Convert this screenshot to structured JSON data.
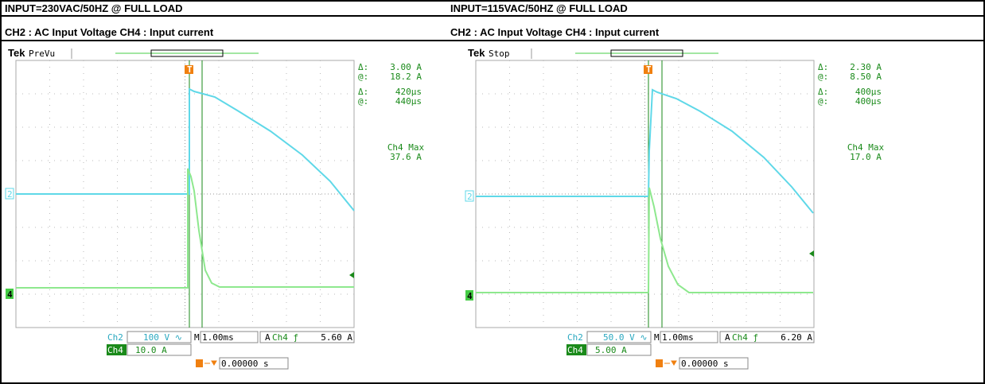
{
  "headers": [
    "INPUT=230VAC/50HZ @ FULL LOAD",
    "INPUT=115VAC/50HZ @ FULL LOAD"
  ],
  "subheaders": [
    "CH2 : AC Input Voltage  CH4 : Input current",
    "CH2 : AC Input Voltage  CH4 : Input current"
  ],
  "scopes": [
    {
      "brand": "Tek",
      "status": "PreVu",
      "readouts": [
        [
          "Δ:",
          "3.00 A"
        ],
        [
          "@:",
          "18.2 A"
        ],
        [
          "Δ:",
          "420µs"
        ],
        [
          "@:",
          "440µs"
        ]
      ],
      "max_title": "Ch4 Max",
      "max_value": "37.6 A",
      "ch2": "Ch2",
      "ch2_setting": "100 V ∿",
      "timebase_prefix": "M",
      "timebase": "1.00ms",
      "trigger_prefix": "A",
      "trigger_source": "Ch4 ƒ",
      "trigger_level": "5.60 A",
      "ch4": "Ch4",
      "ch4_setting": "10.0 A",
      "position": "0.00000 s",
      "marker_ch2": "2",
      "marker_ch4": "4",
      "trigger_marker": "T"
    },
    {
      "brand": "Tek",
      "status": "Stop",
      "readouts": [
        [
          "Δ:",
          "2.30 A"
        ],
        [
          "@:",
          "8.50 A"
        ],
        [
          "Δ:",
          "400µs"
        ],
        [
          "@:",
          "400µs"
        ]
      ],
      "max_title": "Ch4 Max",
      "max_value": "17.0 A",
      "ch2": "Ch2",
      "ch2_setting": "50.0 V ∿",
      "timebase_prefix": "M",
      "timebase": "1.00ms",
      "trigger_prefix": "A",
      "trigger_source": "Ch4 ƒ",
      "trigger_level": "6.20 A",
      "ch4": "Ch4",
      "ch4_setting": "5.00 A",
      "position": "0.00000 s",
      "marker_ch2": "2",
      "marker_ch4": "4",
      "trigger_marker": "T"
    }
  ]
}
